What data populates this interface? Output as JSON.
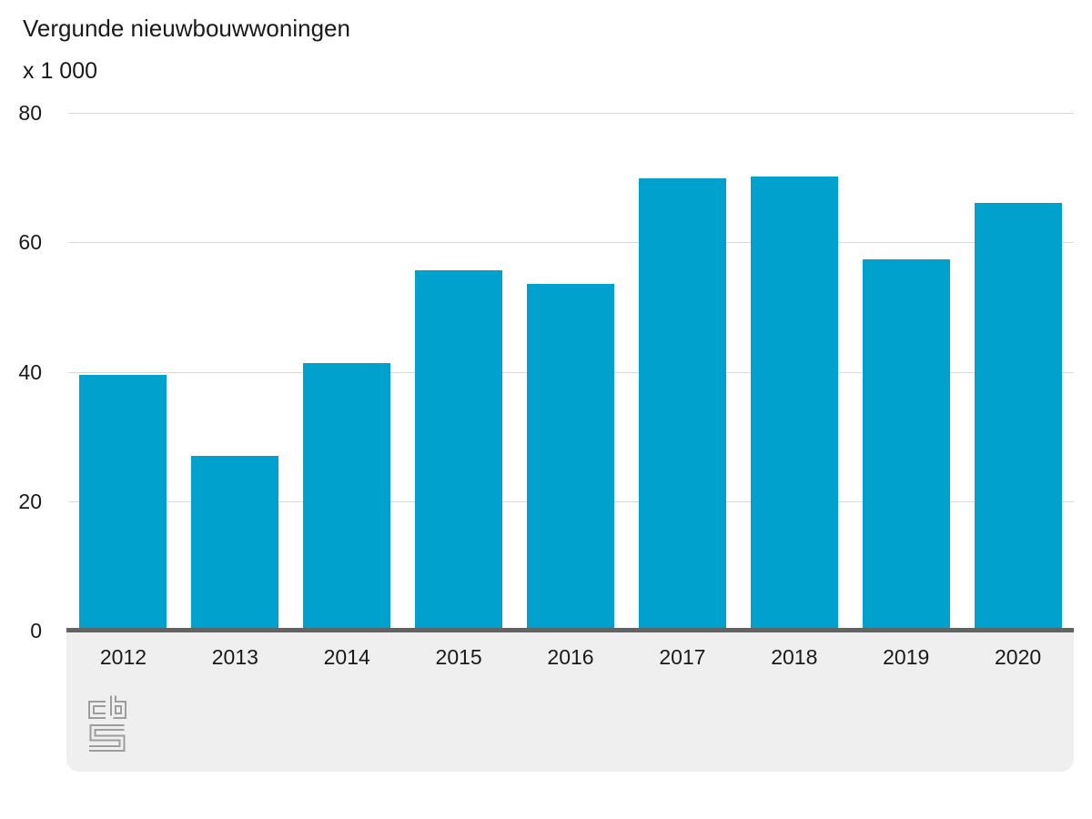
{
  "chart": {
    "title": "Vergunde nieuwbouwwoningen",
    "unit_label": "x 1 000"
  },
  "chart_data": {
    "type": "bar",
    "title": "Vergunde nieuwbouwwoningen",
    "subtitle_unit": "x 1 000",
    "categories": [
      "2012",
      "2013",
      "2014",
      "2015",
      "2016",
      "2017",
      "2018",
      "2019",
      "2020"
    ],
    "values": [
      39.5,
      27.0,
      41.4,
      55.7,
      53.6,
      69.9,
      70.2,
      57.4,
      66.1
    ],
    "xlabel": "",
    "ylabel": "x 1 000",
    "ylim": [
      0,
      80
    ],
    "yticks": [
      0,
      20,
      40,
      60,
      80
    ],
    "grid": true,
    "legend": "none",
    "bar_color": "#00a1cd"
  },
  "colors": {
    "bar": "#00a1cd",
    "gridline": "#d9d9d9",
    "axis_line": "#636363",
    "footer_background": "#efefef",
    "logo_gray": "#9d9d9d",
    "text": "#1a1a1a"
  },
  "footer": {
    "logo_name": "cbs-logo"
  }
}
